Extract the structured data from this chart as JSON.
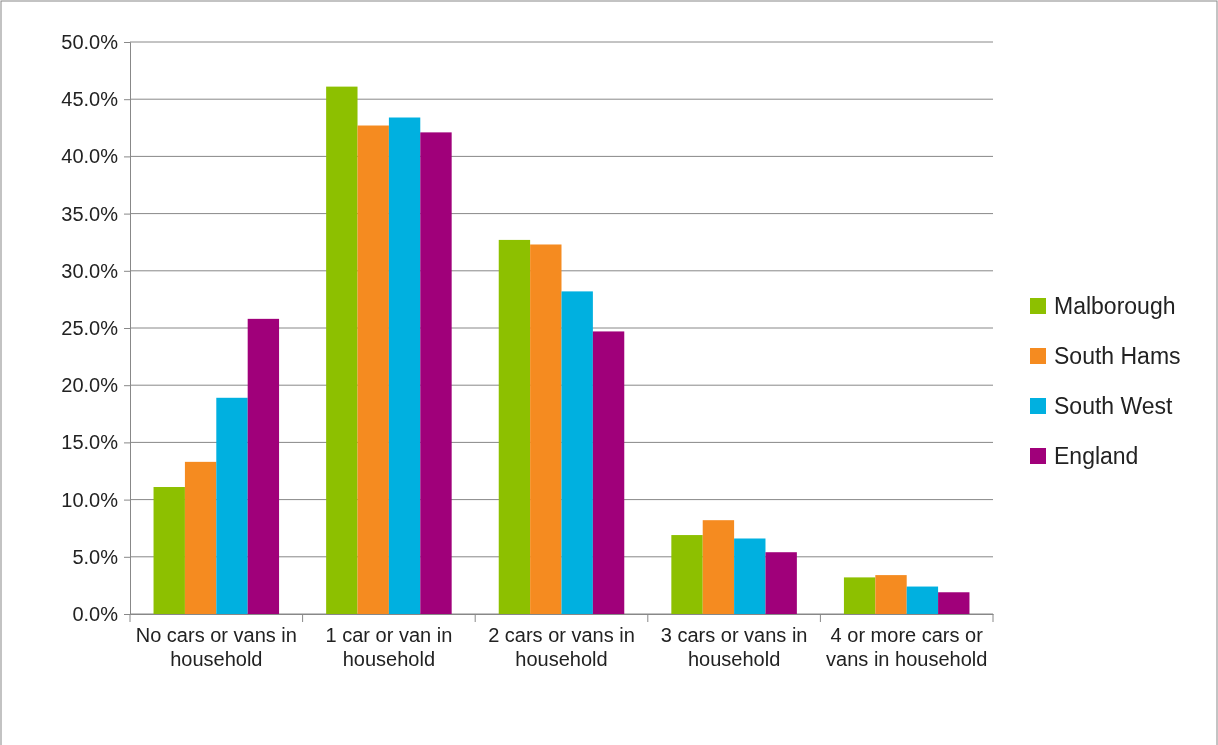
{
  "chart_data": {
    "type": "bar",
    "categories": [
      "No cars or vans in household",
      "1 car or van in household",
      "2 cars or vans in household",
      "3 cars or vans in household",
      "4 or more cars or vans in household"
    ],
    "series": [
      {
        "name": "Malborough",
        "color": "#8dc000",
        "values": [
          11.1,
          46.1,
          32.7,
          6.9,
          3.2
        ]
      },
      {
        "name": "South Hams",
        "color": "#f58b20",
        "values": [
          13.3,
          42.7,
          32.3,
          8.2,
          3.4
        ]
      },
      {
        "name": "South West",
        "color": "#00b0e0",
        "values": [
          18.9,
          43.4,
          28.2,
          6.6,
          2.4
        ]
      },
      {
        "name": "England",
        "color": "#a0007a",
        "values": [
          25.8,
          42.1,
          24.7,
          5.4,
          1.9
        ]
      }
    ],
    "ylim": [
      0,
      50
    ],
    "yticks": [
      {
        "value": 0,
        "label": "0.0%"
      },
      {
        "value": 5,
        "label": "5.0%"
      },
      {
        "value": 10,
        "label": "10.0%"
      },
      {
        "value": 15,
        "label": "15.0%"
      },
      {
        "value": 20,
        "label": "20.0%"
      },
      {
        "value": 25,
        "label": "25.0%"
      },
      {
        "value": 30,
        "label": "30.0%"
      },
      {
        "value": 35,
        "label": "35.0%"
      },
      {
        "value": 40,
        "label": "40.0%"
      },
      {
        "value": 45,
        "label": "45.0%"
      },
      {
        "value": 50,
        "label": "50.0%"
      }
    ],
    "grid": "y",
    "legend": "right"
  }
}
